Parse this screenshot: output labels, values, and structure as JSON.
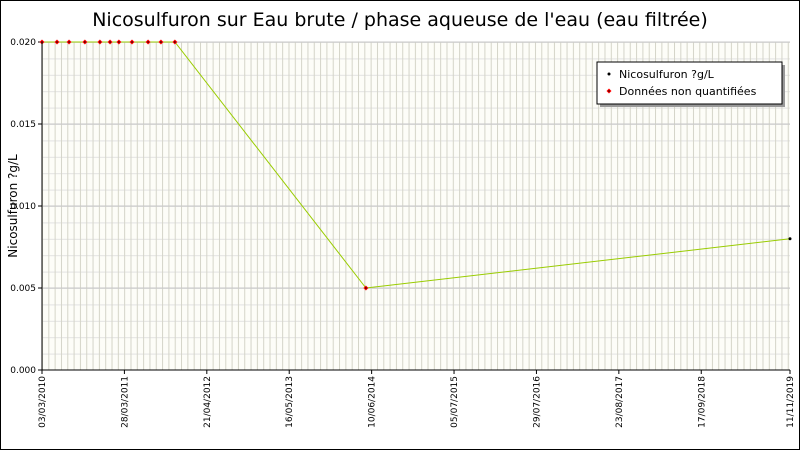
{
  "chart_data": {
    "type": "line",
    "title": "Nicosulfuron sur Eau brute / phase aqueuse de l'eau (eau filtrée)",
    "y_label": "Nicosulfuron ?g/L",
    "x": [
      "2010-03-03",
      "2010-05-13",
      "2010-07-09",
      "2010-09-22",
      "2010-12-02",
      "2011-01-19",
      "2011-03-02",
      "2011-05-03",
      "2011-07-18",
      "2011-09-17",
      "2011-11-22",
      "2014-05-14",
      "2019-11-11"
    ],
    "series": [
      {
        "name": "Nicosulfuron ?g/L",
        "color": "#99cc00",
        "marker_color": "#000000",
        "values": [
          0.02,
          0.02,
          0.02,
          0.02,
          0.02,
          0.02,
          0.02,
          0.02,
          0.02,
          0.02,
          0.02,
          0.005,
          0.008
        ]
      },
      {
        "name": "Données non quantifiées",
        "color": "#ff0000",
        "values": [
          0.02,
          0.02,
          0.02,
          0.02,
          0.02,
          0.02,
          0.02,
          0.02,
          0.02,
          0.02,
          0.02,
          0.005,
          null
        ]
      }
    ],
    "xlim": [
      "2010-03-03",
      "2019-11-11"
    ],
    "xticks": [
      {
        "value": "2010-03-03",
        "label": "03/03/2010"
      },
      {
        "value": "2011-03-28",
        "label": "28/03/2011"
      },
      {
        "value": "2012-04-21",
        "label": "21/04/2012"
      },
      {
        "value": "2013-05-16",
        "label": "16/05/2013"
      },
      {
        "value": "2014-06-10",
        "label": "10/06/2014"
      },
      {
        "value": "2015-07-05",
        "label": "05/07/2015"
      },
      {
        "value": "2016-07-29",
        "label": "29/07/2016"
      },
      {
        "value": "2017-08-23",
        "label": "23/08/2017"
      },
      {
        "value": "2018-09-17",
        "label": "17/09/2018"
      },
      {
        "value": "2019-11-11",
        "label": "11/11/2019"
      }
    ],
    "ylim": [
      0,
      0.02
    ],
    "yticks": [
      {
        "value": 0,
        "label": "0.000"
      },
      {
        "value": 0.005,
        "label": "0.005"
      },
      {
        "value": 0.01,
        "label": "0.010"
      },
      {
        "value": 0.015,
        "label": "0.015"
      },
      {
        "value": 0.02,
        "label": "0.020"
      }
    ],
    "grid": true,
    "legend": "top-right"
  }
}
